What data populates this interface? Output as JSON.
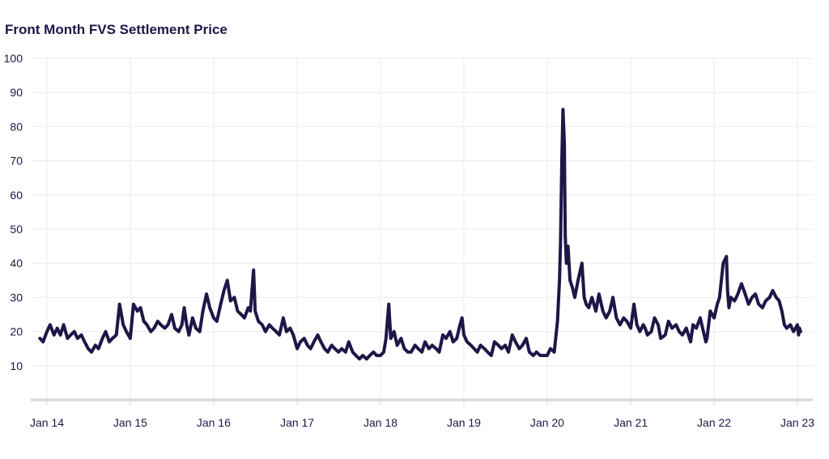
{
  "title": "Front Month FVS Settlement Price",
  "colors": {
    "line": "#1c1747",
    "grid": "#ececec",
    "axis": "#d6d6d6",
    "text": "#1c1747"
  },
  "chart_data": {
    "type": "line",
    "title": "Front Month FVS Settlement Price",
    "xlabel": "",
    "ylabel": "",
    "ylim": [
      0,
      100
    ],
    "xlim": [
      "2013-12-01",
      "2023-01-20"
    ],
    "grid": true,
    "legend": "none",
    "y_ticks": [
      "10",
      "20",
      "30",
      "40",
      "50",
      "60",
      "70",
      "80",
      "90",
      "100"
    ],
    "x_ticks": [
      {
        "label": "Jan 14",
        "date": "2014-01-01"
      },
      {
        "label": "Jan 15",
        "date": "2015-01-01"
      },
      {
        "label": "Jan 16",
        "date": "2016-01-01"
      },
      {
        "label": "Jan 17",
        "date": "2017-01-01"
      },
      {
        "label": "Jan 18",
        "date": "2018-01-01"
      },
      {
        "label": "Jan 19",
        "date": "2019-01-01"
      },
      {
        "label": "Jan 20",
        "date": "2020-01-01"
      },
      {
        "label": "Jan 21",
        "date": "2021-01-01"
      },
      {
        "label": "Jan 22",
        "date": "2022-01-01"
      },
      {
        "label": "Jan 23",
        "date": "2023-01-01"
      }
    ],
    "series": [
      {
        "color": "#1c1747",
        "x": [
          "2013-12-01",
          "2013-12-15",
          "2014-01-01",
          "2014-01-15",
          "2014-02-01",
          "2014-02-15",
          "2014-03-01",
          "2014-03-15",
          "2014-04-01",
          "2014-04-15",
          "2014-05-01",
          "2014-05-15",
          "2014-06-01",
          "2014-06-15",
          "2014-07-01",
          "2014-07-15",
          "2014-08-01",
          "2014-08-15",
          "2014-09-01",
          "2014-09-15",
          "2014-10-01",
          "2014-10-15",
          "2014-11-01",
          "2014-11-15",
          "2014-12-01",
          "2014-12-15",
          "2015-01-01",
          "2015-01-15",
          "2015-02-01",
          "2015-02-15",
          "2015-03-01",
          "2015-03-15",
          "2015-04-01",
          "2015-04-15",
          "2015-05-01",
          "2015-05-15",
          "2015-06-01",
          "2015-06-15",
          "2015-07-01",
          "2015-07-15",
          "2015-08-01",
          "2015-08-15",
          "2015-08-25",
          "2015-09-05",
          "2015-09-15",
          "2015-10-01",
          "2015-10-15",
          "2015-11-01",
          "2015-11-15",
          "2015-12-01",
          "2015-12-15",
          "2016-01-01",
          "2016-01-15",
          "2016-02-01",
          "2016-02-15",
          "2016-03-01",
          "2016-03-15",
          "2016-04-01",
          "2016-04-15",
          "2016-05-01",
          "2016-05-15",
          "2016-06-01",
          "2016-06-10",
          "2016-06-24",
          "2016-07-01",
          "2016-07-15",
          "2016-08-01",
          "2016-08-15",
          "2016-09-01",
          "2016-09-15",
          "2016-10-01",
          "2016-10-15",
          "2016-11-01",
          "2016-11-15",
          "2016-12-01",
          "2016-12-15",
          "2017-01-01",
          "2017-01-15",
          "2017-02-01",
          "2017-02-15",
          "2017-03-01",
          "2017-03-15",
          "2017-04-01",
          "2017-04-15",
          "2017-05-01",
          "2017-05-15",
          "2017-06-01",
          "2017-06-15",
          "2017-07-01",
          "2017-07-15",
          "2017-08-01",
          "2017-08-15",
          "2017-09-01",
          "2017-09-15",
          "2017-10-01",
          "2017-10-15",
          "2017-11-01",
          "2017-11-15",
          "2017-12-01",
          "2017-12-15",
          "2018-01-01",
          "2018-01-15",
          "2018-01-25",
          "2018-02-06",
          "2018-02-15",
          "2018-03-01",
          "2018-03-15",
          "2018-04-01",
          "2018-04-15",
          "2018-05-01",
          "2018-05-15",
          "2018-06-01",
          "2018-06-15",
          "2018-07-01",
          "2018-07-15",
          "2018-08-01",
          "2018-08-15",
          "2018-09-01",
          "2018-09-15",
          "2018-10-01",
          "2018-10-15",
          "2018-11-01",
          "2018-11-15",
          "2018-12-01",
          "2018-12-15",
          "2018-12-24",
          "2019-01-01",
          "2019-01-15",
          "2019-02-01",
          "2019-02-15",
          "2019-03-01",
          "2019-03-15",
          "2019-04-01",
          "2019-04-15",
          "2019-05-01",
          "2019-05-15",
          "2019-06-01",
          "2019-06-15",
          "2019-07-01",
          "2019-07-15",
          "2019-08-01",
          "2019-08-15",
          "2019-09-01",
          "2019-09-15",
          "2019-10-01",
          "2019-10-15",
          "2019-11-01",
          "2019-11-15",
          "2019-12-01",
          "2019-12-15",
          "2020-01-01",
          "2020-01-15",
          "2020-02-01",
          "2020-02-15",
          "2020-02-24",
          "2020-02-28",
          "2020-03-05",
          "2020-03-10",
          "2020-03-16",
          "2020-03-20",
          "2020-03-25",
          "2020-04-01",
          "2020-04-10",
          "2020-04-20",
          "2020-05-01",
          "2020-05-15",
          "2020-06-01",
          "2020-06-11",
          "2020-06-20",
          "2020-07-01",
          "2020-07-15",
          "2020-08-01",
          "2020-08-15",
          "2020-09-01",
          "2020-09-15",
          "2020-10-01",
          "2020-10-15",
          "2020-10-30",
          "2020-11-15",
          "2020-12-01",
          "2020-12-15",
          "2021-01-01",
          "2021-01-15",
          "2021-01-28",
          "2021-02-10",
          "2021-02-25",
          "2021-03-05",
          "2021-03-15",
          "2021-04-01",
          "2021-04-15",
          "2021-05-01",
          "2021-05-12",
          "2021-06-01",
          "2021-06-15",
          "2021-07-01",
          "2021-07-19",
          "2021-08-01",
          "2021-08-15",
          "2021-09-01",
          "2021-09-20",
          "2021-10-01",
          "2021-10-15",
          "2021-11-01",
          "2021-11-26",
          "2021-12-01",
          "2021-12-15",
          "2022-01-01",
          "2022-01-15",
          "2022-01-25",
          "2022-02-10",
          "2022-02-24",
          "2022-03-01",
          "2022-03-07",
          "2022-03-15",
          "2022-04-01",
          "2022-04-15",
          "2022-05-01",
          "2022-05-12",
          "2022-06-01",
          "2022-06-16",
          "2022-07-01",
          "2022-07-15",
          "2022-08-01",
          "2022-08-15",
          "2022-09-01",
          "2022-09-15",
          "2022-09-30",
          "2022-10-13",
          "2022-10-25",
          "2022-11-05",
          "2022-11-15",
          "2022-12-01",
          "2022-12-15",
          "2023-01-01",
          "2023-01-06",
          "2023-01-10",
          "2023-01-15"
        ],
        "y": [
          18,
          17,
          20,
          22,
          19,
          21,
          19,
          22,
          18,
          19,
          20,
          18,
          19,
          17,
          15,
          14,
          16,
          15,
          18,
          20,
          17,
          18,
          19,
          28,
          22,
          20,
          18,
          28,
          26,
          27,
          23,
          22,
          20,
          21,
          23,
          22,
          21,
          22,
          25,
          21,
          20,
          22,
          27,
          22,
          19,
          24,
          21,
          20,
          26,
          31,
          27,
          24,
          23,
          28,
          32,
          35,
          29,
          30,
          26,
          25,
          24,
          27,
          26,
          38,
          26,
          23,
          22,
          20,
          22,
          21,
          20,
          19,
          24,
          20,
          21,
          19,
          15,
          17,
          18,
          16,
          15,
          17,
          19,
          17,
          15,
          14,
          16,
          15,
          14,
          15,
          14,
          17,
          14,
          13,
          12,
          13,
          12,
          13,
          14,
          13,
          13,
          14,
          18,
          28,
          18,
          20,
          16,
          18,
          15,
          14,
          14,
          16,
          15,
          14,
          17,
          15,
          16,
          15,
          14,
          19,
          18,
          20,
          17,
          18,
          22,
          24,
          19,
          17,
          16,
          15,
          14,
          16,
          15,
          14,
          13,
          17,
          16,
          15,
          16,
          14,
          19,
          17,
          15,
          16,
          18,
          14,
          13,
          14,
          13,
          13,
          13,
          15,
          14,
          23,
          35,
          45,
          70,
          85,
          75,
          48,
          40,
          45,
          35,
          33,
          30,
          35,
          40,
          30,
          28,
          27,
          30,
          26,
          31,
          26,
          24,
          26,
          30,
          24,
          22,
          24,
          23,
          21,
          28,
          22,
          20,
          22,
          21,
          19,
          20,
          24,
          22,
          18,
          19,
          23,
          21,
          22,
          20,
          19,
          21,
          17,
          22,
          21,
          24,
          17,
          18,
          26,
          24,
          28,
          30,
          40,
          42,
          32,
          27,
          30,
          29,
          31,
          34,
          32,
          28,
          30,
          31,
          28,
          27,
          29,
          30,
          32,
          30,
          29,
          26,
          22,
          21,
          22,
          20,
          22,
          19,
          21,
          20
        ]
      }
    ]
  }
}
